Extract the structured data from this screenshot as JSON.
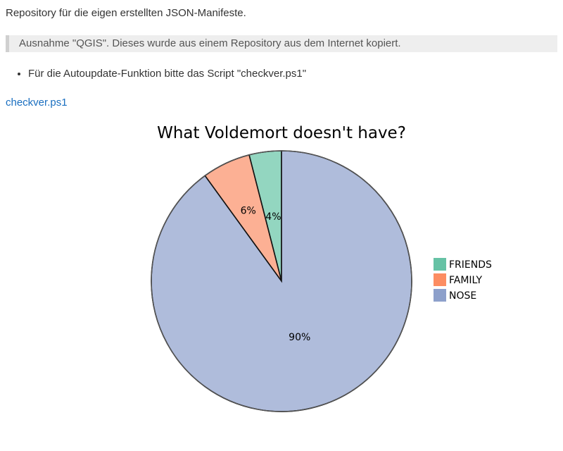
{
  "document": {
    "intro": "Repository für die eigen erstellten JSON-Manifeste.",
    "quote": "Ausnahme \"QGIS\". Dieses wurde aus einem Repository aus dem Internet kopiert.",
    "bullets": [
      "Für die Autoupdate-Funktion bitte das Script \"checkver.ps1\""
    ],
    "link_text": "checkver.ps1"
  },
  "chart_data": {
    "type": "pie",
    "title": "What Voldemort doesn't have?",
    "legend_position": "right",
    "slices": [
      {
        "label": "FRIENDS",
        "value": 4,
        "display": "4%",
        "color": "#93d6c0"
      },
      {
        "label": "FAMILY",
        "value": 6,
        "display": "6%",
        "color": "#fcb094"
      },
      {
        "label": "NOSE",
        "value": 90,
        "display": "90%",
        "color": "#afbcdb"
      }
    ],
    "legend_colors": [
      "#66c2a5",
      "#fc8d62",
      "#8da0cb"
    ]
  }
}
